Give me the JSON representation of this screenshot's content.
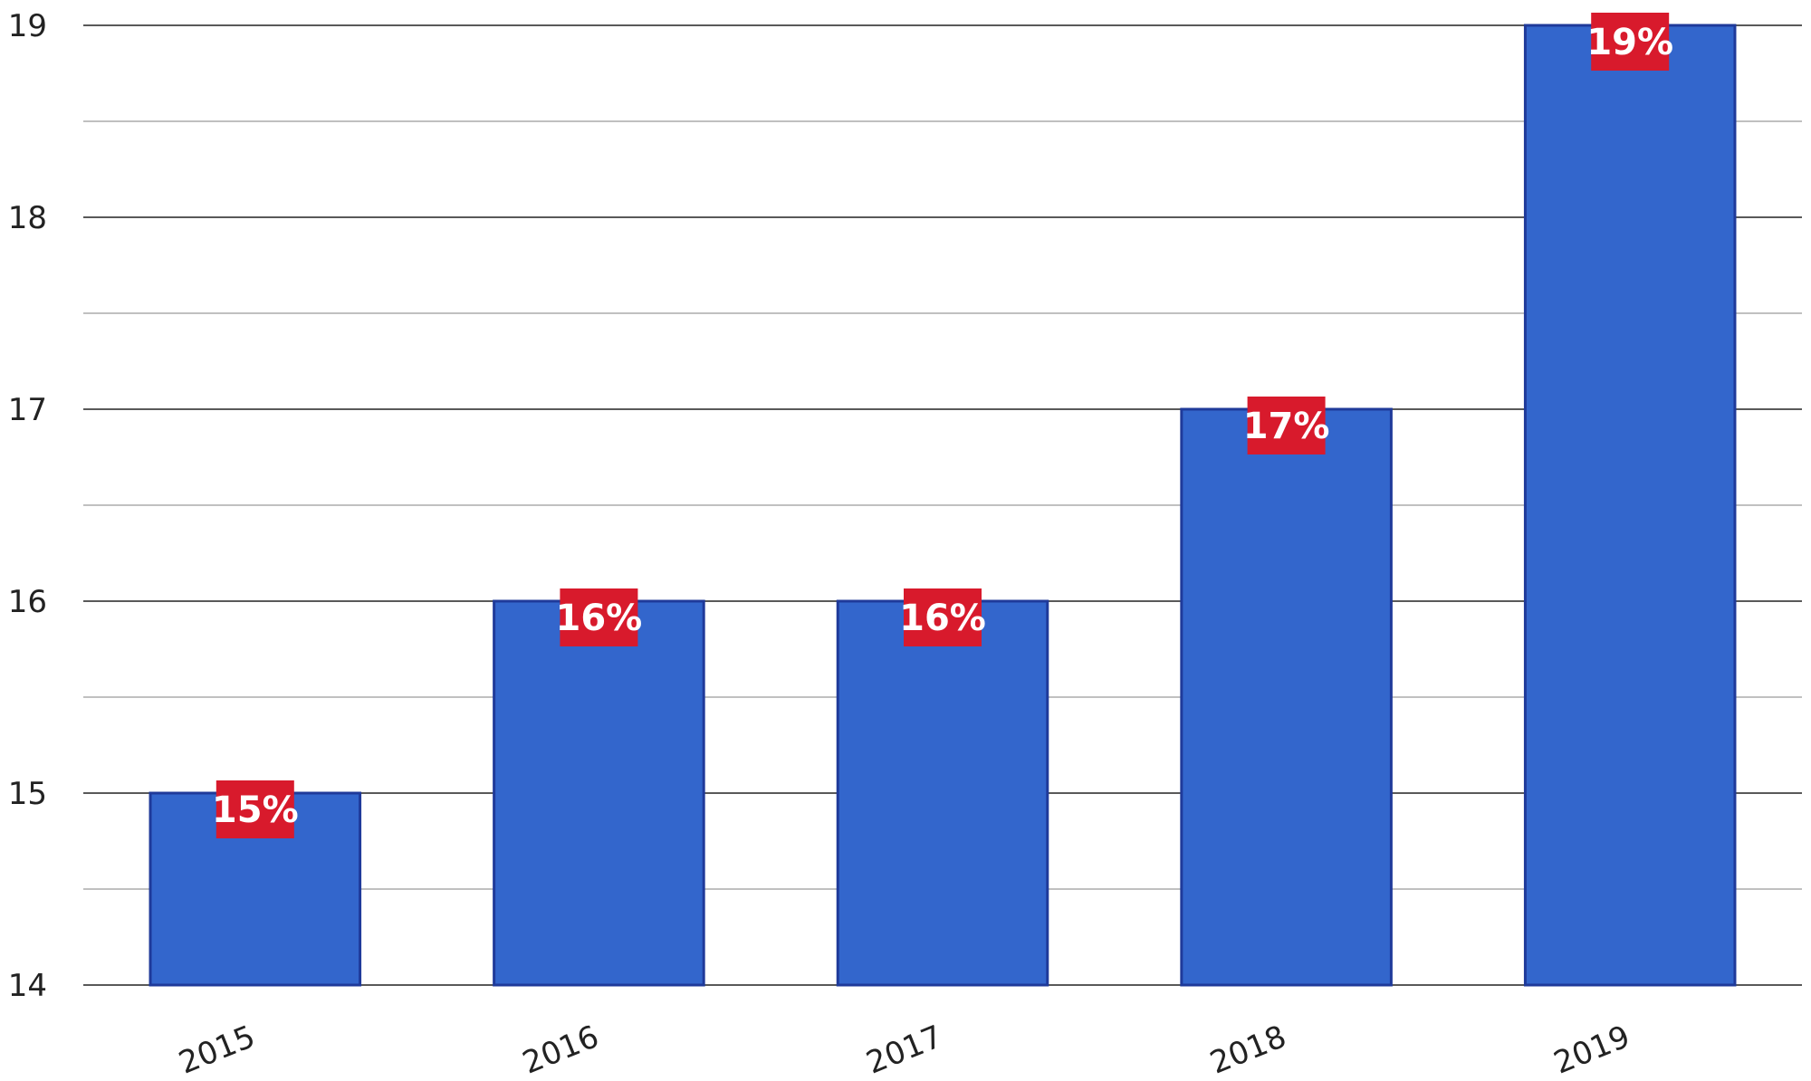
{
  "chart_data": {
    "type": "bar",
    "title": "",
    "xlabel": "",
    "ylabel": "",
    "categories": [
      "2015",
      "2016",
      "2017",
      "2018",
      "2019"
    ],
    "values": [
      15,
      16,
      16,
      17,
      19
    ],
    "data_labels": [
      "15%",
      "16%",
      "16%",
      "17%",
      "19%"
    ],
    "ylim": [
      14,
      19
    ],
    "y_major_ticks": [
      14,
      15,
      16,
      17,
      18,
      19
    ],
    "y_minor_ticks": [
      14.5,
      15.5,
      16.5,
      17.5,
      18.5
    ],
    "grid": true,
    "legend": "none",
    "colors": {
      "bar_fill": "#3366cc",
      "bar_stroke": "#1f3a9a",
      "label_background": "#d81a2c",
      "label_text": "#ffffff",
      "major_grid": "#222222",
      "minor_grid": "#9a9a9a"
    }
  }
}
